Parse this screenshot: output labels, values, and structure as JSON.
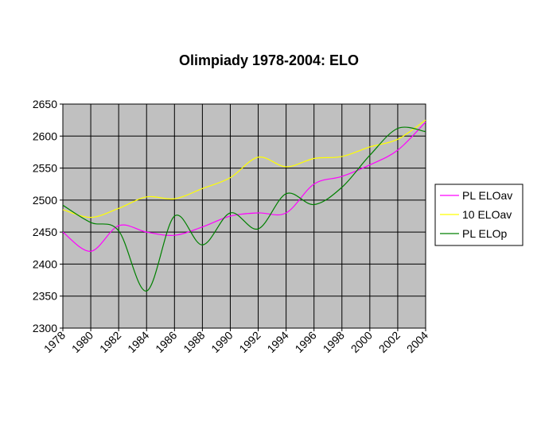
{
  "chart_data": {
    "type": "line",
    "title": "Olimpiady 1978-2004: ELO",
    "x": [
      1978,
      1980,
      1982,
      1984,
      1986,
      1988,
      1990,
      1992,
      1994,
      1996,
      1998,
      2000,
      2002,
      2004
    ],
    "xlim": [
      1978,
      2004
    ],
    "xticks": [
      1978,
      1980,
      1982,
      1984,
      1986,
      1988,
      1990,
      1992,
      1994,
      1996,
      1998,
      2000,
      2002,
      2004
    ],
    "ylim": [
      2300,
      2650
    ],
    "yticks": [
      2300,
      2350,
      2400,
      2450,
      2500,
      2550,
      2600,
      2650
    ],
    "grid": true,
    "legend": "right",
    "smooth": true,
    "series": [
      {
        "name": "PL ELOav",
        "color": "#ff00ff",
        "values": [
          2450,
          2420,
          2460,
          2450,
          2445,
          2458,
          2475,
          2480,
          2480,
          2525,
          2537,
          2555,
          2578,
          2622
        ]
      },
      {
        "name": "10 ELOav",
        "color": "#ffff00",
        "values": [
          2485,
          2473,
          2487,
          2505,
          2502,
          2518,
          2535,
          2567,
          2552,
          2565,
          2568,
          2583,
          2595,
          2625
        ]
      },
      {
        "name": "PL ELOp",
        "color": "#008000",
        "values": [
          2492,
          2465,
          2452,
          2358,
          2475,
          2430,
          2480,
          2455,
          2510,
          2493,
          2520,
          2570,
          2612,
          2607
        ]
      }
    ]
  }
}
